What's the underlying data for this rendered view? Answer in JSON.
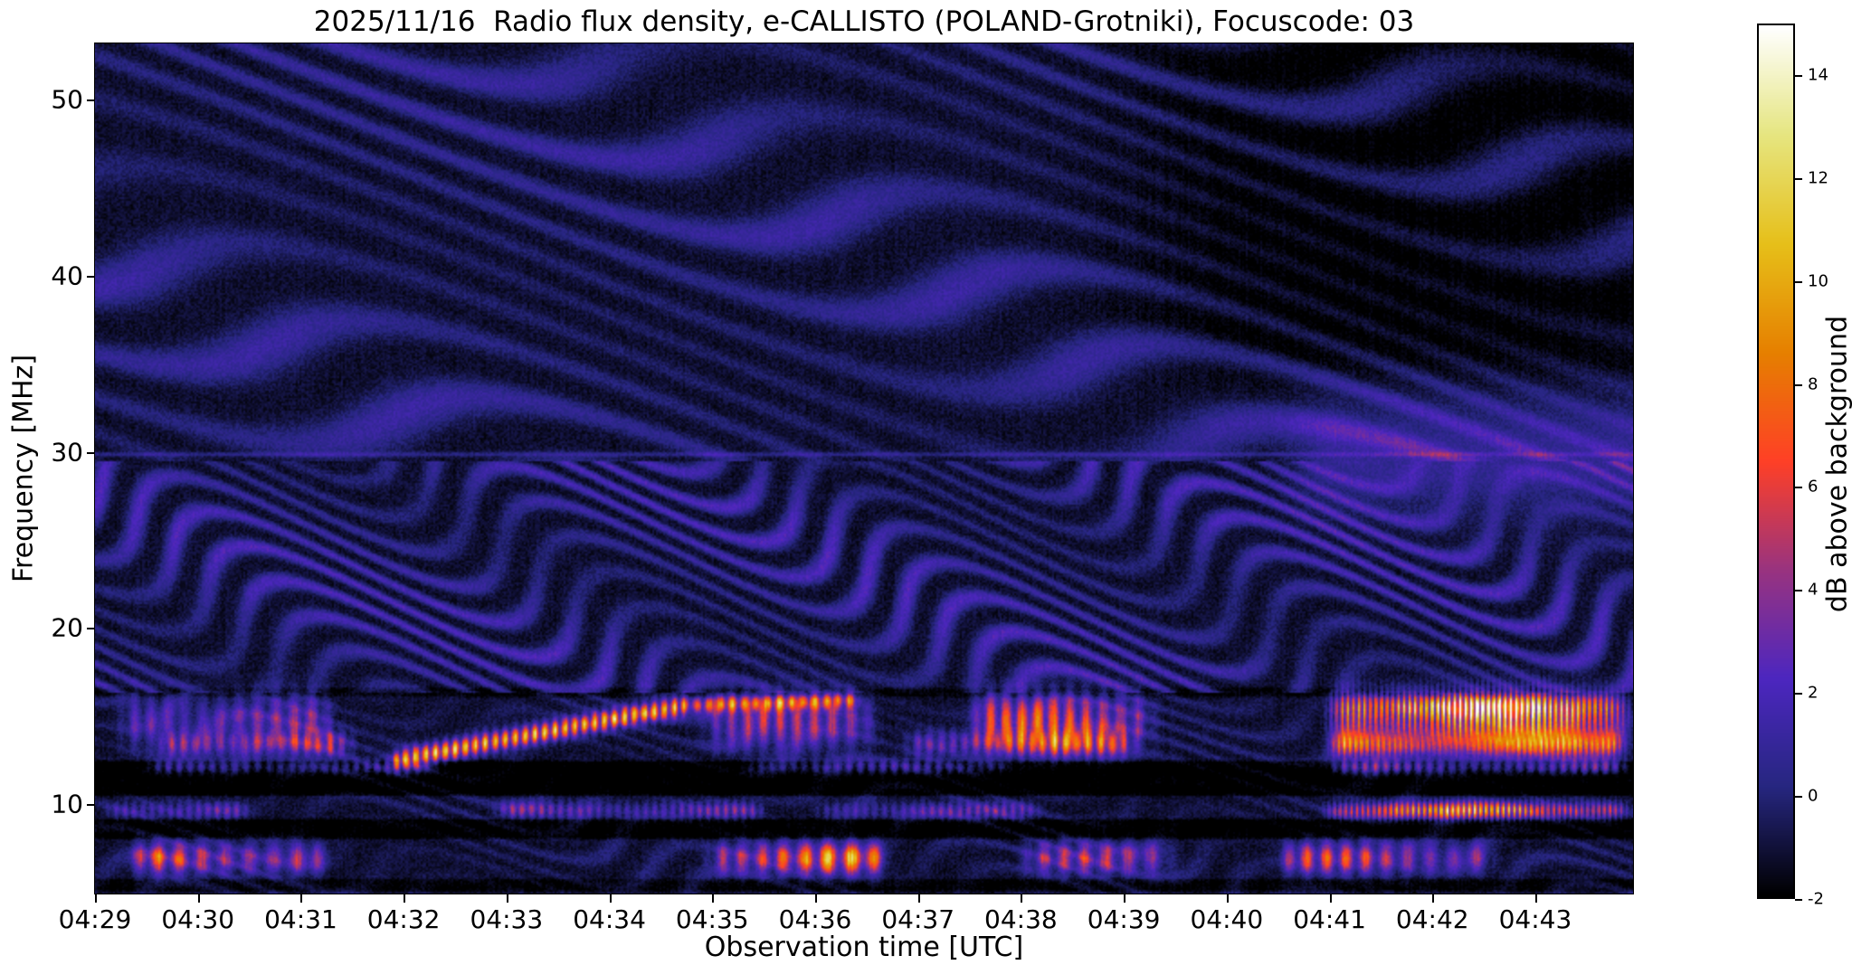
{
  "chart_data": {
    "type": "heatmap",
    "title": "2025/11/16  Radio flux density, e-CALLISTO (POLAND-Grotniki), Focuscode: 03",
    "xlabel": "Observation time [UTC]",
    "ylabel": "Frequency [MHz]",
    "x_ticks": [
      "04:29",
      "04:30",
      "04:31",
      "04:32",
      "04:33",
      "04:34",
      "04:35",
      "04:36",
      "04:37",
      "04:38",
      "04:39",
      "04:40",
      "04:41",
      "04:42",
      "04:43"
    ],
    "x_range_minutes": [
      0,
      14.95
    ],
    "y_ticks": [
      10,
      20,
      30,
      40,
      50
    ],
    "y_range_mhz": [
      4.9,
      53.2
    ],
    "grid": false,
    "colorbar": {
      "label": "dB above background",
      "ticks": [
        -2,
        0,
        2,
        4,
        6,
        8,
        10,
        12,
        14
      ],
      "range": [
        -2,
        15
      ],
      "colormap": "CMRmap-like",
      "stops": [
        [
          0,
          0,
          0
        ],
        [
          0.15,
          0.15,
          0.5
        ],
        [
          0.3,
          0.15,
          0.75
        ],
        [
          0.6,
          0.2,
          0.5
        ],
        [
          1,
          0.25,
          0.15
        ],
        [
          0.9,
          0.5,
          0
        ],
        [
          0.9,
          0.75,
          0.1
        ],
        [
          0.9,
          0.9,
          0.5
        ],
        [
          1,
          1,
          1
        ]
      ]
    },
    "procedural": {
      "seed": 20251116,
      "background_level": -1.3,
      "fringes": [
        {
          "fmin": 29.5,
          "fmax": 53.2,
          "spacing": 2.9,
          "drift": 0.45,
          "wav": 1.0,
          "wav_t": 0.85,
          "wav_f": 0.22,
          "amp": 2.1,
          "env_t": 0.75,
          "env_f": 0.33,
          "env_p": 1.2
        },
        {
          "fmin": 16.3,
          "fmax": 29.5,
          "spacing": 1.85,
          "drift": 0.22,
          "wav": 1.4,
          "wav_t": 1.9,
          "wav_f": 0.33,
          "amp": 2.9,
          "env_t": 1.15,
          "env_f": 0.5,
          "env_p": 0.3
        },
        {
          "fmin": 4.9,
          "fmax": 16.3,
          "spacing": 1.4,
          "drift": 0.3,
          "wav": 1.0,
          "wav_t": 2.3,
          "wav_f": 0.5,
          "amp": 1.1,
          "env_t": 1.4,
          "env_f": 0.7,
          "env_p": 2.0
        }
      ],
      "dark_bands": [
        {
          "f0": 10.35,
          "f1": 12.55,
          "depth": 1.7
        },
        {
          "f0": 7.9,
          "f1": 9.25,
          "depth": 1.5
        },
        {
          "f0": 4.9,
          "f1": 5.85,
          "depth": 1.0
        },
        {
          "f0": 15.95,
          "f1": 16.7,
          "depth": 0.9
        }
      ],
      "emission_bands": [
        {
          "center": 14.7,
          "width": 1.05,
          "flicker": 38,
          "bursts": [
            [
              0.15,
              2.4,
              6
            ],
            [
              5.8,
              7.7,
              7
            ],
            [
              8.4,
              10.4,
              10
            ],
            [
              11.9,
              15.0,
              13
            ]
          ],
          "striped_after": 11.9
        },
        {
          "center": 15.55,
          "width": 0.45,
          "flicker": 50,
          "bursts": [
            [
              11.9,
              15.0,
              11
            ]
          ],
          "striped_after": 11.9
        },
        {
          "center": 13.4,
          "width": 0.5,
          "flicker": 55,
          "bursts": [
            [
              0.5,
              2.6,
              7
            ],
            [
              7.8,
              10.2,
              9
            ],
            [
              11.9,
              15.0,
              12
            ]
          ],
          "striped_after": 11.9
        },
        {
          "center": 12.1,
          "width": 0.28,
          "flicker": 60,
          "bursts": [
            [
              0.4,
              3.4,
              5
            ],
            [
              6.2,
              9.0,
              5
            ],
            [
              11.9,
              15.0,
              7
            ]
          ]
        },
        {
          "center": 9.62,
          "width": 0.33,
          "flicker": 70,
          "bursts": [
            [
              0.0,
              1.6,
              6
            ],
            [
              3.8,
              6.6,
              6
            ],
            [
              6.9,
              9.3,
              5
            ],
            [
              11.85,
              15.0,
              14
            ]
          ],
          "striped_after": 11.85
        },
        {
          "center": 6.9,
          "width": 0.62,
          "flicker": 30,
          "bursts": [
            [
              0.25,
              2.35,
              10
            ],
            [
              5.85,
              7.8,
              13
            ],
            [
              8.9,
              10.6,
              7
            ],
            [
              11.4,
              13.7,
              9
            ]
          ]
        }
      ],
      "drifting_lines": [
        {
          "t0": 2.9,
          "t1": 5.75,
          "f0": 12.45,
          "f1": 15.6,
          "width": 0.38,
          "amp": 13,
          "flicker": 65
        },
        {
          "t0": 5.75,
          "t1": 7.4,
          "f0": 15.6,
          "f1": 15.9,
          "width": 0.3,
          "amp": 9,
          "flicker": 55
        }
      ],
      "line30": {
        "f": 29.85,
        "width": 0.09,
        "amp": 1.6
      },
      "right_blue_band": {
        "t_start": 11.3,
        "center": 29.7,
        "width": 2.3,
        "amp": 2.0
      },
      "topright_dim": {
        "t_start": 9.0,
        "f_start": 32.5,
        "depth": 0.95
      },
      "noise": {
        "pixel": 1.05,
        "column": 0.26
      }
    }
  }
}
